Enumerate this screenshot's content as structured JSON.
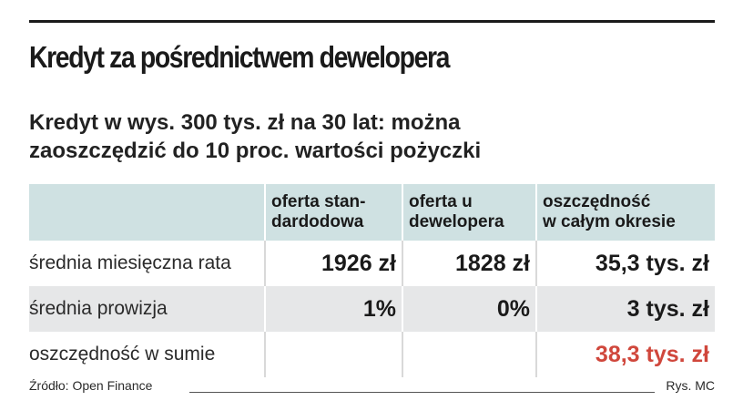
{
  "title": "Kredyt za pośrednictwem dewelopera",
  "subtitle": {
    "line1": "Kredyt w wys. 300 tys. zł na 30 lat: można",
    "line2": "zaoszczędzić do 10 proc. wartości pożyczki"
  },
  "table": {
    "headers": [
      {
        "line1": "oferta stan-",
        "line2": "dardodowa"
      },
      {
        "line1": "oferta u",
        "line2": "dewelopera"
      },
      {
        "line1": "oszczędność",
        "line2": "w całym okresie"
      }
    ],
    "rows": [
      {
        "label": "średnia miesięczna rata",
        "standard": "1926 zł",
        "developer": "1828 zł",
        "savings": "35,3 tys. zł"
      },
      {
        "label": "średnia prowizja",
        "standard": "1%",
        "developer": "0%",
        "savings": "3 tys. zł"
      },
      {
        "label": "oszczędność w sumie",
        "standard": "",
        "developer": "",
        "savings": "38,3 tys. zł"
      }
    ]
  },
  "footer": {
    "source": "Źródło: Open Finance",
    "credit": "Rys. MC"
  },
  "colors": {
    "header_bg": "#cfe1e2",
    "row_shade": "#e6e7e8",
    "highlight": "#d0473c"
  }
}
